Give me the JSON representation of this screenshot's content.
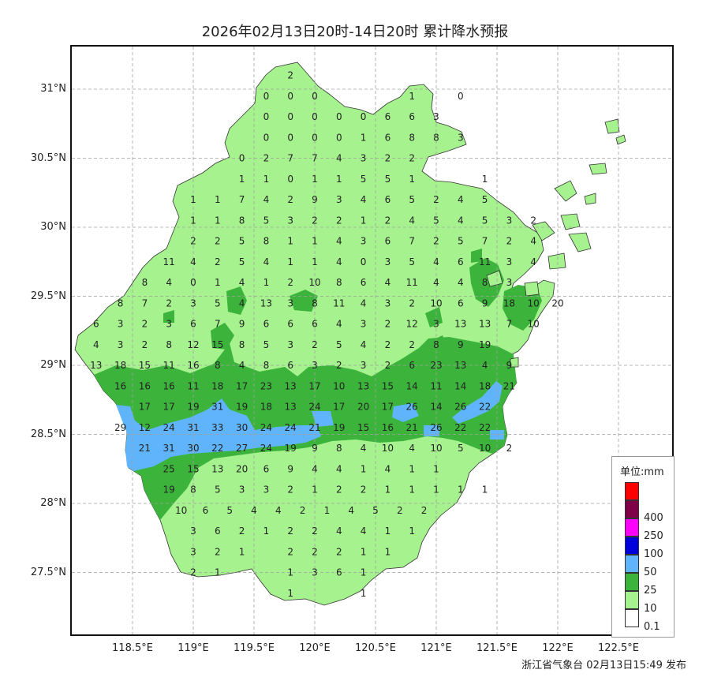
{
  "title": "2026年02月13日20时-14日20时 累计降水预报",
  "footer": "浙江省气象台 02月13日15:49 发布",
  "lat_labels": [
    "31°N",
    "30.5°N",
    "30°N",
    "29.5°N",
    "29°N",
    "28.5°N",
    "28°N",
    "27.5°N"
  ],
  "lon_labels": [
    "118.5°E",
    "119°E",
    "119.5°E",
    "120°E",
    "120.5°E",
    "121°E",
    "121.5°E",
    "122°E",
    "122.5°E"
  ],
  "legend": {
    "title": "单位:mm",
    "items": [
      {
        "label": "",
        "color": "#ff0000"
      },
      {
        "label": "400",
        "color": "#7f0046"
      },
      {
        "label": "250",
        "color": "#ff00ff"
      },
      {
        "label": "100",
        "color": "#0000dd"
      },
      {
        "label": "50",
        "color": "#5fb4fb"
      },
      {
        "label": "25",
        "color": "#3cb43c"
      },
      {
        "label": "10",
        "color": "#a6f28f"
      },
      {
        "label": "0.1",
        "color": "#ffffff"
      }
    ]
  },
  "colors": {
    "light_green": "#a6f28f",
    "green": "#3cb43c",
    "blue": "#5fb4fb",
    "grid": "#a0a0a0"
  },
  "station_rows": [
    {
      "lat": 31.1,
      "lon0": 119.8,
      "values": [
        "2"
      ]
    },
    {
      "lat": 30.95,
      "lon0": 119.6,
      "values": [
        "0",
        "0",
        "0",
        "",
        "",
        "",
        "1",
        "",
        "0"
      ]
    },
    {
      "lat": 30.8,
      "lon0": 119.6,
      "values": [
        "0",
        "0",
        "0",
        "0",
        "0",
        "6",
        "6",
        "3"
      ]
    },
    {
      "lat": 30.65,
      "lon0": 119.6,
      "values": [
        "0",
        "0",
        "0",
        "0",
        "1",
        "6",
        "8",
        "8",
        "3"
      ]
    },
    {
      "lat": 30.5,
      "lon0": 119.4,
      "values": [
        "0",
        "2",
        "7",
        "7",
        "4",
        "3",
        "2",
        "2"
      ]
    },
    {
      "lat": 30.35,
      "lon0": 119.4,
      "values": [
        "1",
        "1",
        "0",
        "1",
        "1",
        "5",
        "5",
        "1",
        "",
        "",
        "1"
      ]
    },
    {
      "lat": 30.2,
      "lon0": 119.0,
      "values": [
        "1",
        "1",
        "7",
        "4",
        "2",
        "9",
        "3",
        "4",
        "6",
        "5",
        "2",
        "4",
        "5"
      ]
    },
    {
      "lat": 30.05,
      "lon0": 119.0,
      "values": [
        "1",
        "1",
        "8",
        "5",
        "3",
        "2",
        "2",
        "1",
        "2",
        "4",
        "5",
        "4",
        "5",
        "3",
        "2"
      ]
    },
    {
      "lat": 29.9,
      "lon0": 119.0,
      "values": [
        "2",
        "2",
        "5",
        "8",
        "1",
        "1",
        "4",
        "3",
        "6",
        "7",
        "2",
        "5",
        "7",
        "2",
        "4"
      ]
    },
    {
      "lat": 29.75,
      "lon0": 118.8,
      "values": [
        "11",
        "4",
        "2",
        "5",
        "4",
        "1",
        "1",
        "4",
        "0",
        "3",
        "5",
        "4",
        "6",
        "11",
        "3",
        "4"
      ]
    },
    {
      "lat": 29.6,
      "lon0": 118.6,
      "values": [
        "8",
        "4",
        "0",
        "1",
        "4",
        "1",
        "2",
        "10",
        "8",
        "6",
        "4",
        "11",
        "4",
        "4",
        "8",
        "3"
      ]
    },
    {
      "lat": 29.45,
      "lon0": 118.4,
      "values": [
        "8",
        "7",
        "2",
        "3",
        "5",
        "4",
        "13",
        "3",
        "8",
        "11",
        "4",
        "3",
        "2",
        "10",
        "6",
        "9",
        "18",
        "10",
        "20"
      ]
    },
    {
      "lat": 29.3,
      "lon0": 118.2,
      "values": [
        "6",
        "3",
        "2",
        "3",
        "6",
        "7",
        "9",
        "6",
        "6",
        "6",
        "4",
        "3",
        "2",
        "12",
        "3",
        "13",
        "13",
        "7",
        "10"
      ]
    },
    {
      "lat": 29.15,
      "lon0": 118.2,
      "values": [
        "4",
        "3",
        "2",
        "8",
        "12",
        "15",
        "8",
        "5",
        "3",
        "2",
        "5",
        "4",
        "2",
        "2",
        "8",
        "9",
        "19"
      ]
    },
    {
      "lat": 29.0,
      "lon0": 118.2,
      "values": [
        "13",
        "18",
        "15",
        "11",
        "16",
        "8",
        "4",
        "8",
        "6",
        "3",
        "2",
        "3",
        "2",
        "6",
        "23",
        "13",
        "4",
        "9"
      ]
    },
    {
      "lat": 28.85,
      "lon0": 118.4,
      "values": [
        "16",
        "16",
        "16",
        "11",
        "18",
        "17",
        "23",
        "13",
        "17",
        "10",
        "13",
        "15",
        "14",
        "11",
        "14",
        "18",
        "21"
      ]
    },
    {
      "lat": 28.7,
      "lon0": 118.6,
      "values": [
        "17",
        "17",
        "19",
        "31",
        "19",
        "18",
        "13",
        "24",
        "17",
        "20",
        "17",
        "26",
        "14",
        "26",
        "22"
      ]
    },
    {
      "lat": 28.55,
      "lon0": 118.4,
      "values": [
        "29",
        "12",
        "24",
        "31",
        "33",
        "30",
        "24",
        "24",
        "21",
        "19",
        "15",
        "16",
        "21",
        "26",
        "22",
        "22"
      ]
    },
    {
      "lat": 28.4,
      "lon0": 118.6,
      "values": [
        "21",
        "31",
        "30",
        "22",
        "27",
        "24",
        "19",
        "9",
        "8",
        "4",
        "10",
        "4",
        "10",
        "5",
        "10",
        "2"
      ]
    },
    {
      "lat": 28.25,
      "lon0": 118.8,
      "values": [
        "25",
        "15",
        "13",
        "20",
        "6",
        "9",
        "4",
        "4",
        "1",
        "4",
        "1",
        "1"
      ]
    },
    {
      "lat": 28.1,
      "lon0": 118.8,
      "values": [
        "19",
        "8",
        "5",
        "3",
        "3",
        "2",
        "1",
        "2",
        "2",
        "1",
        "1",
        "1",
        "1",
        "1"
      ]
    },
    {
      "lat": 27.95,
      "lon0": 118.9,
      "values": [
        "10",
        "6",
        "5",
        "4",
        "4",
        "2",
        "1",
        "4",
        "5",
        "2",
        "2"
      ]
    },
    {
      "lat": 27.8,
      "lon0": 119.0,
      "values": [
        "3",
        "6",
        "2",
        "1",
        "2",
        "2",
        "4",
        "4",
        "1",
        "1"
      ]
    },
    {
      "lat": 27.65,
      "lon0": 119.0,
      "values": [
        "3",
        "2",
        "1",
        "",
        "2",
        "2",
        "2",
        "1",
        "1"
      ]
    },
    {
      "lat": 27.5,
      "lon0": 119.0,
      "values": [
        "2",
        "1",
        "",
        "",
        "1",
        "3",
        "6",
        "1"
      ]
    },
    {
      "lat": 27.35,
      "lon0": 119.8,
      "values": [
        "1",
        "",
        "",
        "1"
      ]
    }
  ]
}
